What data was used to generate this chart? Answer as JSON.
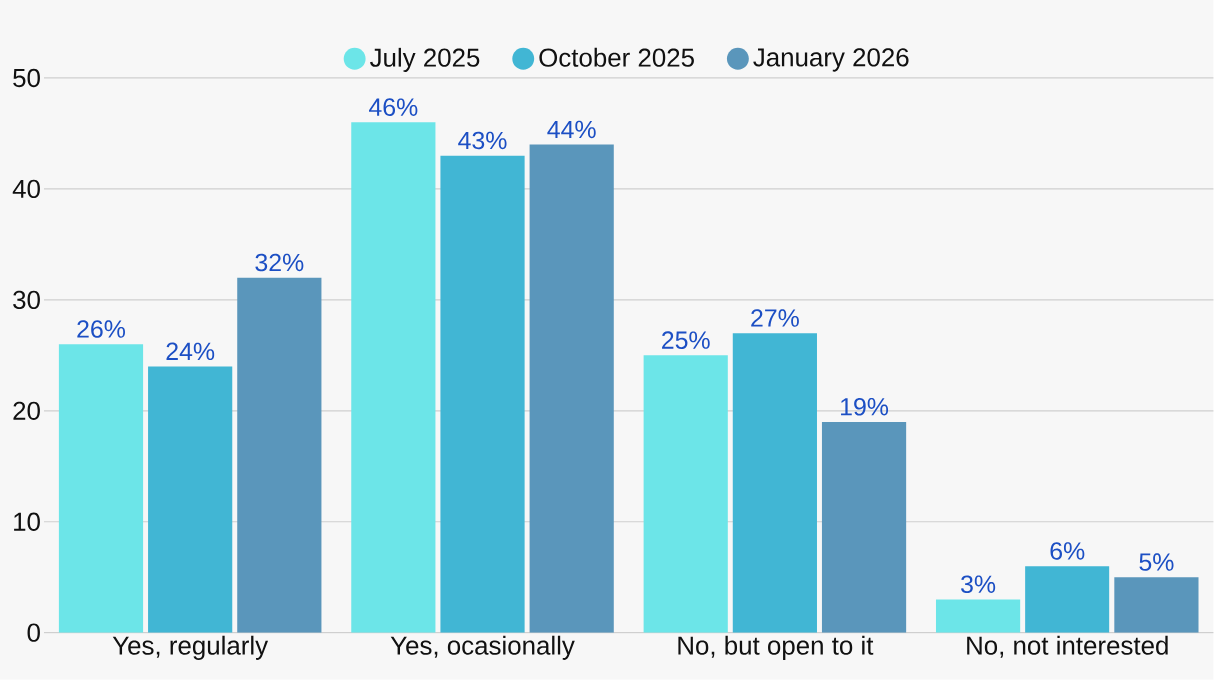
{
  "chart_data": {
    "type": "bar",
    "categories": [
      "Yes, regularly",
      "Yes, ocasionally",
      "No, but open to it",
      "No, not interested"
    ],
    "series": [
      {
        "name": "July 2025",
        "color": "#6ce5e8",
        "values": [
          26,
          46,
          25,
          3
        ],
        "value_labels": [
          "26%",
          "46%",
          "25%",
          "3%"
        ]
      },
      {
        "name": "October 2025",
        "color": "#41b6d4",
        "values": [
          24,
          43,
          27,
          6
        ],
        "value_labels": [
          "24%",
          "43%",
          "27%",
          "6%"
        ]
      },
      {
        "name": "January 2026",
        "color": "#5a96bb",
        "values": [
          32,
          44,
          19,
          5
        ],
        "value_labels": [
          "32%",
          "44%",
          "19%",
          "5%"
        ]
      }
    ],
    "ylim": [
      0,
      50
    ],
    "yticks": [
      0,
      10,
      20,
      30,
      40,
      50
    ],
    "grid": "y",
    "legend": "top"
  }
}
